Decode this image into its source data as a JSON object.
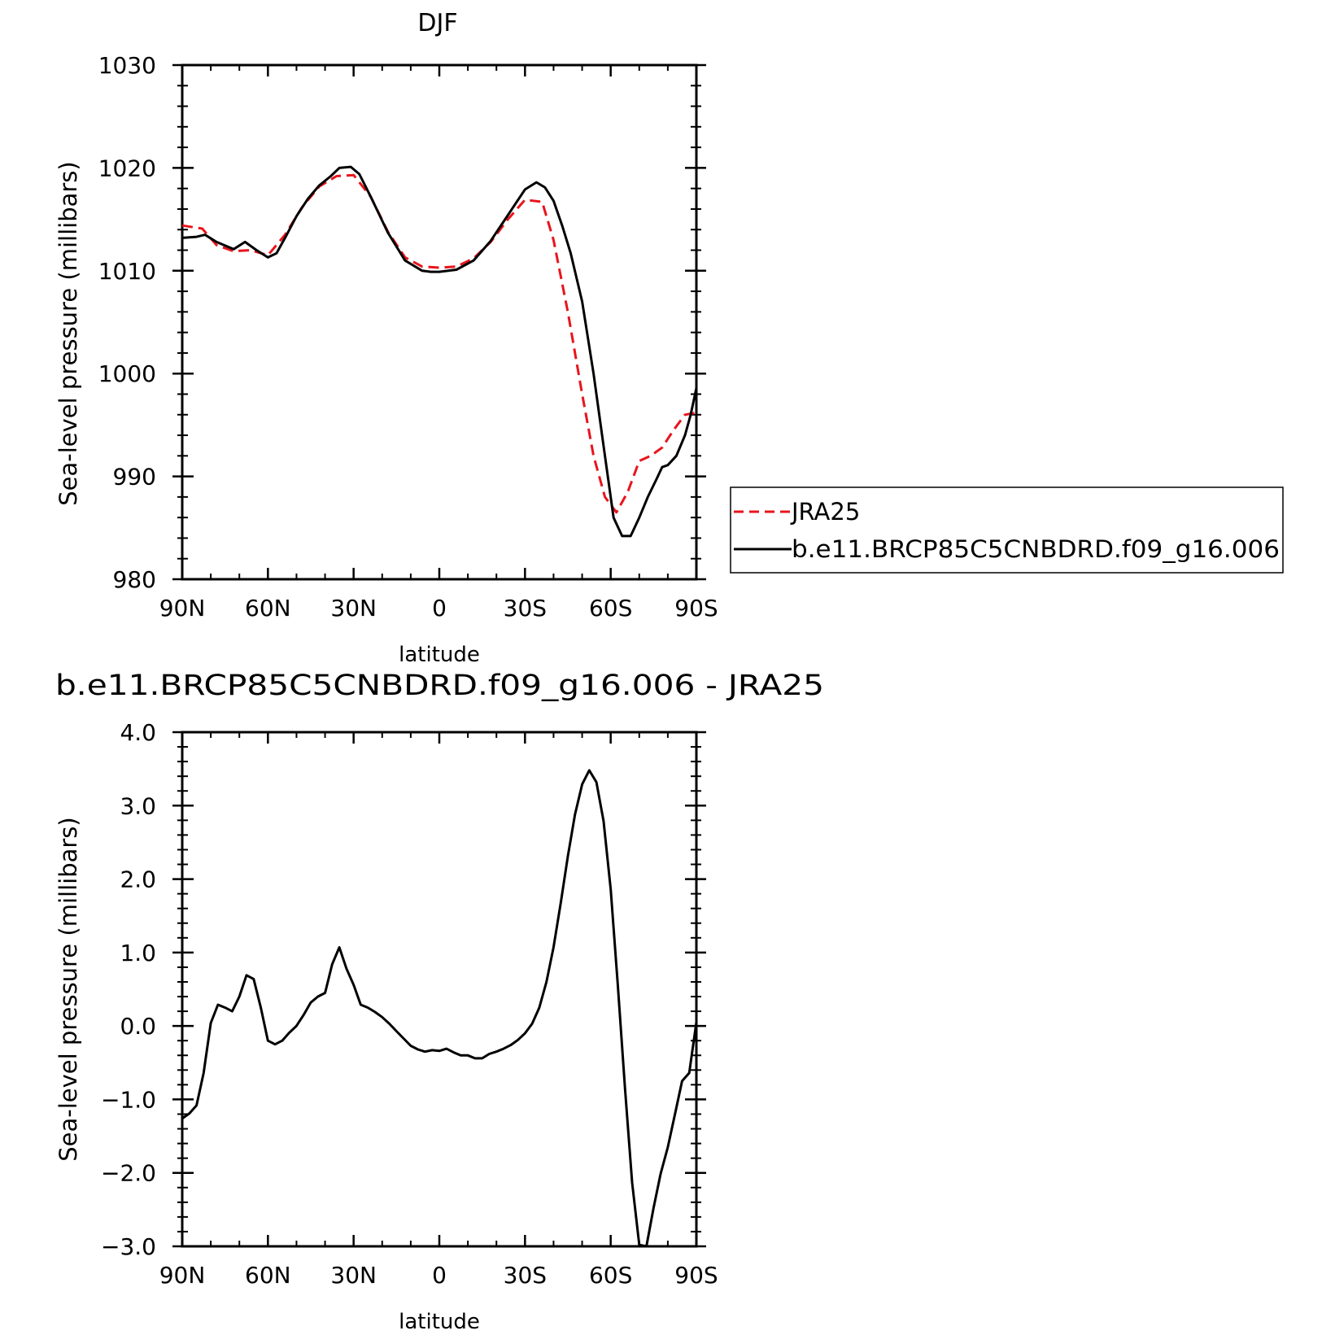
{
  "chart_data": [
    {
      "type": "line",
      "title": "DJF",
      "xlabel": "latitude",
      "ylabel": "Sea-level pressure (millibars)",
      "xlim": [
        90,
        -90
      ],
      "ylim": [
        980,
        1030
      ],
      "xticks": [
        90,
        60,
        30,
        0,
        -30,
        -60,
        -90
      ],
      "xtick_labels": [
        "90N",
        "60N",
        "30N",
        "0",
        "30S",
        "60S",
        "90S"
      ],
      "yticks": [
        980,
        990,
        1000,
        1010,
        1020,
        1030
      ],
      "ytick_labels": [
        "980",
        "990",
        "1000",
        "1010",
        "1020",
        "1030"
      ],
      "grid": false,
      "legend": "right",
      "series": [
        {
          "name": "JRA25",
          "color": "#e8141c",
          "dash": "dashed",
          "x": [
            90,
            83,
            78,
            72,
            66,
            60,
            54,
            48,
            42,
            36,
            30,
            24,
            18,
            12,
            6,
            0,
            -6,
            -12,
            -18,
            -24,
            -30,
            -36,
            -40,
            -45,
            -50,
            -54,
            -58,
            -62,
            -66,
            -70,
            -74,
            -78,
            -82,
            -86,
            -90
          ],
          "y": [
            1014.4,
            1014.1,
            1012.5,
            1011.9,
            1012.0,
            1011.5,
            1013.5,
            1016.2,
            1018.2,
            1019.2,
            1019.3,
            1017.2,
            1013.8,
            1011.3,
            1010.4,
            1010.3,
            1010.4,
            1011.2,
            1012.8,
            1015.0,
            1016.9,
            1016.7,
            1013.0,
            1006.0,
            998.0,
            992.0,
            988.0,
            986.5,
            988.5,
            991.5,
            992.0,
            992.8,
            994.5,
            996.0,
            996.2
          ]
        },
        {
          "name": "b.e11.BRCP85C5CNBDRD.f09_g16.006",
          "color": "#000000",
          "dash": "solid",
          "x": [
            90,
            85,
            82,
            78,
            72,
            68,
            64,
            60,
            57,
            54,
            50,
            46,
            42,
            38,
            35,
            31,
            28,
            24,
            18,
            12,
            6,
            3,
            0,
            -6,
            -12,
            -18,
            -24,
            -30,
            -34,
            -37,
            -40,
            -43,
            -46,
            -50,
            -54,
            -58,
            -61,
            -64,
            -67,
            -70,
            -73,
            -76,
            -78,
            -80,
            -83,
            -86,
            -88,
            -90
          ],
          "y": [
            1013.2,
            1013.3,
            1013.5,
            1012.8,
            1012.1,
            1012.8,
            1012.0,
            1011.3,
            1011.7,
            1013.2,
            1015.3,
            1017.0,
            1018.3,
            1019.2,
            1020.0,
            1020.1,
            1019.4,
            1017.2,
            1013.7,
            1011.0,
            1010.0,
            1009.9,
            1009.9,
            1010.1,
            1011.0,
            1012.9,
            1015.4,
            1017.9,
            1018.6,
            1018.1,
            1016.8,
            1014.4,
            1011.7,
            1007.0,
            1000.0,
            992.0,
            986.0,
            984.2,
            984.2,
            986.0,
            988.0,
            989.7,
            990.9,
            991.1,
            992.0,
            994.0,
            996.0,
            998.6
          ]
        }
      ]
    },
    {
      "type": "line",
      "title": "b.e11.BRCP85C5CNBDRD.f09_g16.006 - JRA25",
      "xlabel": "latitude",
      "ylabel": "Sea-level pressure (millibars)",
      "xlim": [
        90,
        -90
      ],
      "ylim": [
        -3.0,
        4.0
      ],
      "xticks": [
        90,
        60,
        30,
        0,
        -30,
        -60,
        -90
      ],
      "xtick_labels": [
        "90N",
        "60N",
        "30N",
        "0",
        "30S",
        "60S",
        "90S"
      ],
      "yticks": [
        -3.0,
        -2.0,
        -1.0,
        0.0,
        1.0,
        2.0,
        3.0,
        4.0
      ],
      "ytick_labels": [
        "−3.0",
        "−2.0",
        "−1.0",
        "0.0",
        "1.0",
        "2.0",
        "3.0",
        "4.0"
      ],
      "grid": false,
      "series": [
        {
          "color": "#000000",
          "dash": "solid",
          "x": [
            90,
            87.5,
            85,
            82.5,
            80,
            77.5,
            75,
            72.5,
            70,
            67.5,
            65,
            62.5,
            60,
            57.5,
            55,
            52.5,
            50,
            47.5,
            45,
            42.5,
            40,
            37.5,
            35,
            32.5,
            30,
            27.5,
            25,
            22.5,
            20,
            17.5,
            15,
            12.5,
            10,
            7.5,
            5,
            2.5,
            0,
            -2.5,
            -5,
            -7.5,
            -10,
            -12.5,
            -15,
            -17.5,
            -20,
            -22.5,
            -25,
            -27.5,
            -30,
            -32.5,
            -35,
            -37.5,
            -40,
            -42.5,
            -45,
            -47.5,
            -50,
            -52.5,
            -55,
            -57.5,
            -60,
            -62.5,
            -65,
            -67.5,
            -70,
            -72.5,
            -75,
            -77.5,
            -80,
            -82.5,
            -85,
            -87.5,
            -90
          ],
          "y": [
            -1.26,
            -1.19,
            -1.08,
            -0.64,
            0.04,
            0.29,
            0.25,
            0.2,
            0.4,
            0.69,
            0.64,
            0.25,
            -0.2,
            -0.25,
            -0.2,
            -0.09,
            0.0,
            0.15,
            0.32,
            0.4,
            0.45,
            0.84,
            1.07,
            0.78,
            0.56,
            0.29,
            0.25,
            0.19,
            0.12,
            0.03,
            -0.07,
            -0.17,
            -0.27,
            -0.32,
            -0.35,
            -0.33,
            -0.34,
            -0.31,
            -0.36,
            -0.4,
            -0.4,
            -0.44,
            -0.44,
            -0.38,
            -0.35,
            -0.31,
            -0.26,
            -0.19,
            -0.1,
            0.03,
            0.25,
            0.6,
            1.07,
            1.67,
            2.31,
            2.88,
            3.29,
            3.48,
            3.32,
            2.79,
            1.86,
            0.56,
            -0.84,
            -2.13,
            -2.98,
            -3.38,
            -2.48,
            -2.01,
            -1.65,
            -1.2,
            -0.75,
            -0.64,
            0.05
          ]
        }
      ]
    }
  ]
}
